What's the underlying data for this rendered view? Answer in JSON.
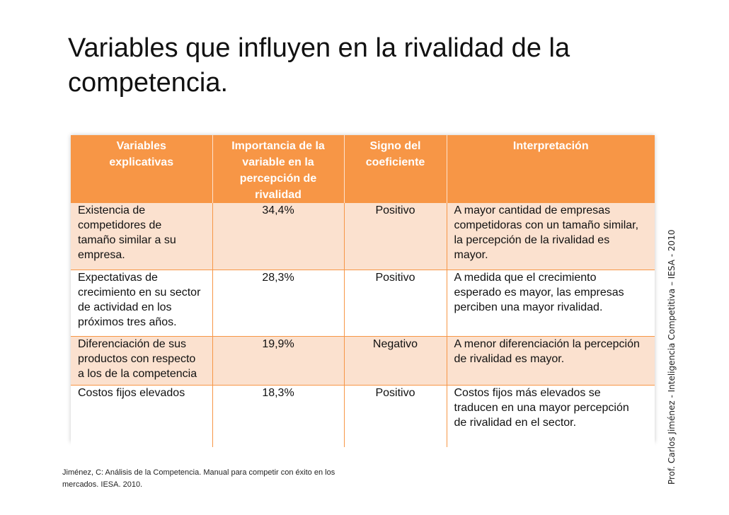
{
  "title_lines": [
    "Variables que influyen en la rivalidad de la",
    "competencia."
  ],
  "table": {
    "headers": [
      [
        "Variables",
        "explicativas"
      ],
      [
        "Importancia de la",
        "variable en la",
        "percepción de",
        "rivalidad"
      ],
      [
        "Signo del",
        "coeficiente"
      ],
      [
        "Interpretación"
      ]
    ],
    "rows": [
      {
        "variable": [
          "Existencia de",
          "competidores de",
          "tamaño similar a su",
          "empresa."
        ],
        "importance": "34,4%",
        "sign": "Positivo",
        "interpretation": [
          "A mayor cantidad de empresas",
          "competidoras con un tamaño similar,",
          "la percepción de la rivalidad es",
          "mayor."
        ]
      },
      {
        "variable": [
          "Expectativas de",
          "crecimiento en su sector",
          "de actividad en los",
          "próximos tres años."
        ],
        "importance": "28,3%",
        "sign": "Positivo",
        "interpretation": [
          "A medida que el crecimiento",
          "esperado es mayor, las empresas",
          "perciben una mayor rivalidad."
        ]
      },
      {
        "variable": [
          "Diferenciación de sus",
          "productos con respecto",
          "a los de la competencia"
        ],
        "importance": "19,9%",
        "sign": "Negativo",
        "interpretation": [
          "A menor diferenciación la percepción",
          "de rivalidad es mayor."
        ]
      },
      {
        "variable": [
          "Costos fijos elevados"
        ],
        "importance": "18,3%",
        "sign": "Positivo",
        "interpretation": [
          "Costos fijos más elevados se",
          "traducen en una mayor percepción",
          "de rivalidad en el sector."
        ]
      }
    ]
  },
  "footnote_lines": [
    "Jiménez, C: Análisis de la Competencia. Manual para competir con éxito en los",
    "mercados. IESA. 2010."
  ],
  "side_credit": "Prof. Carlos Jiménez - Inteligencia Competitiva – IESA - 2010",
  "colors": {
    "header_bg": "#f79646",
    "band_bg": "#fbe1cf",
    "header_text": "#ffffff"
  }
}
